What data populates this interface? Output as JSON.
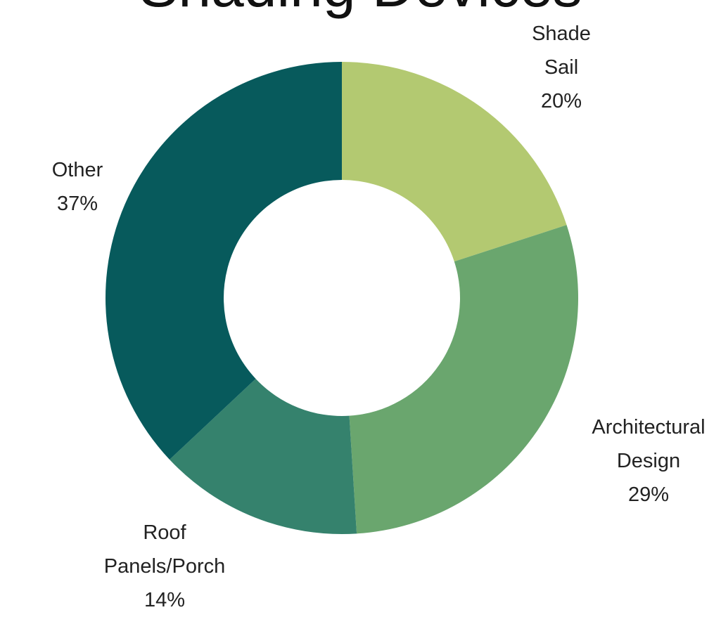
{
  "chart_data": {
    "type": "pie",
    "title": "Shading Devices",
    "donut": true,
    "start_angle_deg": 0,
    "direction": "clockwise",
    "slices": [
      {
        "key": "shade-sail",
        "label_lines": [
          "Shade",
          "Sail"
        ],
        "percent_label": "20%",
        "value": 20,
        "color": "#b3c971"
      },
      {
        "key": "architectural-design",
        "label_lines": [
          "Architectural",
          "Design"
        ],
        "percent_label": "29%",
        "value": 29,
        "color": "#6aa66e"
      },
      {
        "key": "roof-panels-porch",
        "label_lines": [
          "Roof",
          "Panels/Porch"
        ],
        "percent_label": "14%",
        "value": 14,
        "color": "#35826d"
      },
      {
        "key": "other",
        "label_lines": [
          "Other"
        ],
        "percent_label": "37%",
        "value": 37,
        "color": "#075a5c"
      }
    ]
  }
}
